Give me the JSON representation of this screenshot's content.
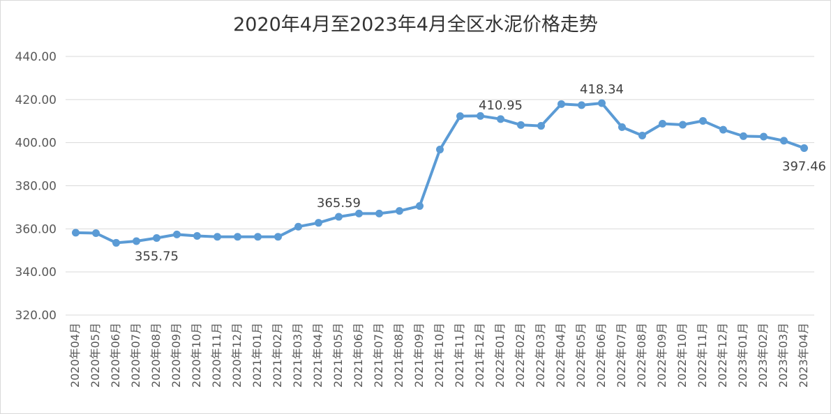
{
  "chart_data": {
    "type": "line",
    "title": "2020年4月至2023年4月全区水泥价格走势",
    "xlabel": "",
    "ylabel": "",
    "ylim": [
      320,
      440
    ],
    "yticks": [
      "320.00",
      "340.00",
      "360.00",
      "380.00",
      "400.00",
      "420.00",
      "440.00"
    ],
    "grid": true,
    "legend": "none",
    "color": "#5b9bd5",
    "categories": [
      "2020年04月",
      "2020年05月",
      "2020年06月",
      "2020年07月",
      "2020年08月",
      "2020年09月",
      "2020年10月",
      "2020年11月",
      "2020年12月",
      "2021年01月",
      "2021年02月",
      "2021年03月",
      "2021年04月",
      "2021年05月",
      "2021年06月",
      "2021年07月",
      "2021年08月",
      "2021年09月",
      "2021年10月",
      "2021年11月",
      "2021年12月",
      "2022年01月",
      "2022年02月",
      "2022年03月",
      "2022年04月",
      "2022年05月",
      "2022年06月",
      "2022年07月",
      "2022年08月",
      "2022年09月",
      "2022年10月",
      "2022年11月",
      "2022年12月",
      "2023年01月",
      "2023年02月",
      "2023年03月",
      "2023年04月"
    ],
    "series": [
      {
        "values": [
          358.2,
          358.0,
          353.5,
          354.3,
          355.75,
          357.4,
          356.7,
          356.3,
          356.3,
          356.3,
          356.3,
          361.0,
          362.8,
          365.59,
          367.1,
          367.1,
          368.3,
          370.6,
          396.8,
          412.3,
          412.4,
          410.95,
          408.2,
          407.8,
          417.9,
          417.4,
          418.34,
          407.2,
          403.3,
          408.8,
          408.3,
          410.1,
          406.0,
          403.0,
          402.8,
          400.9,
          397.46
        ]
      }
    ],
    "data_labels": [
      {
        "index": 4,
        "text": "355.75",
        "pos": "below"
      },
      {
        "index": 13,
        "text": "365.59",
        "pos": "above"
      },
      {
        "index": 21,
        "text": "410.95",
        "pos": "above"
      },
      {
        "index": 26,
        "text": "418.34",
        "pos": "above"
      },
      {
        "index": 36,
        "text": "397.46",
        "pos": "below"
      }
    ]
  }
}
